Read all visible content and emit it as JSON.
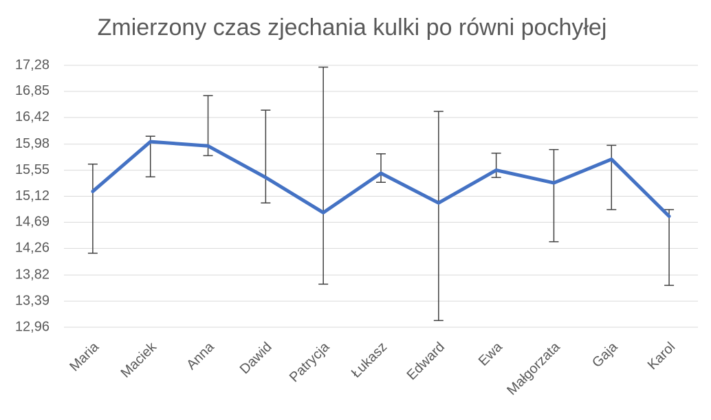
{
  "chart_data": {
    "type": "line",
    "title": "Zmierzony czas zjechania kulki po równi pochyłej",
    "categories": [
      "Maria",
      "Maciek",
      "Anna",
      "Dawid",
      "Patrycja",
      "Łukasz",
      "Edward",
      "Ewa",
      "Małgorzata",
      "Gaja",
      "Karol"
    ],
    "series": [
      {
        "color": "#4472c4",
        "values": [
          15.2,
          16.02,
          15.95,
          15.43,
          14.85,
          15.5,
          15.01,
          15.55,
          15.34,
          15.73,
          14.79
        ],
        "errors_plus": [
          0.45,
          0.09,
          0.83,
          1.11,
          2.4,
          0.32,
          1.51,
          0.28,
          0.55,
          0.23,
          0.11
        ],
        "errors_minus": [
          1.02,
          0.58,
          0.16,
          0.42,
          1.18,
          0.15,
          1.94,
          0.12,
          0.97,
          0.83,
          1.14
        ],
        "error_color": "#404040"
      }
    ],
    "ylim": [
      12.96,
      17.28
    ],
    "yticks": [
      {
        "value": 12.96,
        "label": "12,96"
      },
      {
        "value": 13.39,
        "label": "13,39"
      },
      {
        "value": 13.82,
        "label": "13,82"
      },
      {
        "value": 14.26,
        "label": "14,26"
      },
      {
        "value": 14.69,
        "label": "14,69"
      },
      {
        "value": 15.12,
        "label": "15,12"
      },
      {
        "value": 15.55,
        "label": "15,55"
      },
      {
        "value": 15.98,
        "label": "15,98"
      },
      {
        "value": 16.42,
        "label": "16,42"
      },
      {
        "value": 16.85,
        "label": "16,85"
      },
      {
        "value": 17.28,
        "label": "17,28"
      }
    ],
    "grid": true
  }
}
